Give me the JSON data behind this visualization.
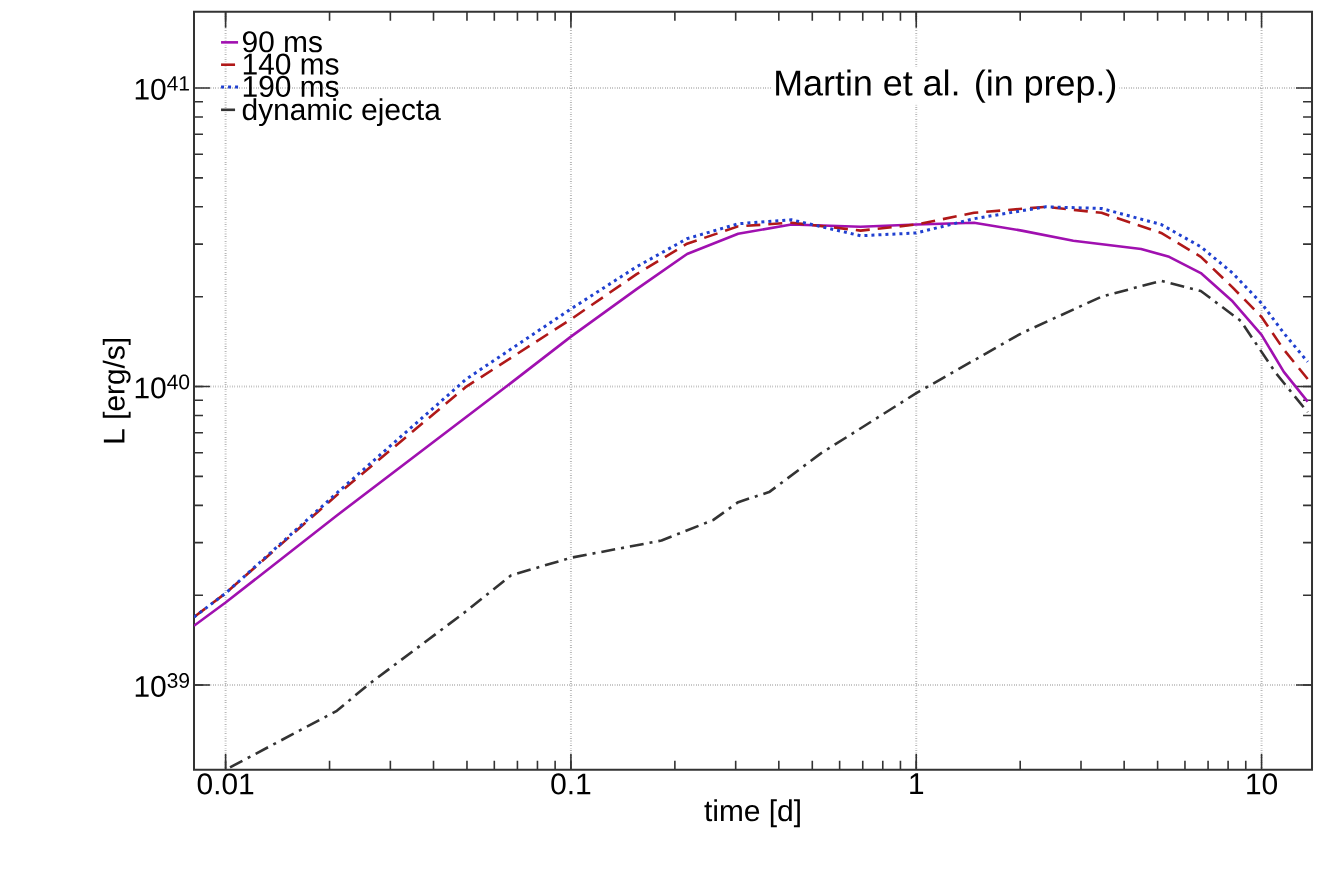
{
  "chart_data": {
    "type": "line",
    "xlabel": "time [d]",
    "ylabel": "L [erg/s]",
    "annotations": [
      "Martin et al. (in prep.)"
    ],
    "log": "xy",
    "grid": true,
    "legend": "top left",
    "marker": "none",
    "xlim": [
      0.0081,
      14
    ],
    "ylim": [
      5.2e+38,
      1.8e+41
    ],
    "xticks": [
      0.01,
      0.1,
      1,
      10
    ],
    "yticks": [
      {
        "value": 1e+39,
        "label": "10$^{39}$"
      },
      {
        "value": 1e+40,
        "label": "10$^{40}$"
      },
      {
        "value": 1e+41,
        "label": "10$^{41}$"
      }
    ],
    "series": [
      {
        "name": "90 ms",
        "color": "#a010b0",
        "line_style": "solid",
        "x": [
          0.0081,
          0.01,
          0.021,
          0.065,
          0.1,
          0.155,
          0.217,
          0.305,
          0.435,
          0.69,
          1,
          1.47,
          2.02,
          2.85,
          4.48,
          5.4,
          6.67,
          8.24,
          10,
          11.6,
          13.6
        ],
        "values": [
          1.58e+39,
          1.89e+39,
          3.7e+39,
          1e+40,
          1.47e+40,
          2.12e+40,
          2.78e+40,
          3.25e+40,
          3.49e+40,
          3.43e+40,
          3.49e+40,
          3.54e+40,
          3.33e+40,
          3.08e+40,
          2.89e+40,
          2.72e+40,
          2.4e+40,
          1.93e+40,
          1.49e+40,
          1.12e+40,
          8.9e+39
        ]
      },
      {
        "name": "140 ms",
        "color": "#b01818",
        "line_style": "dashed",
        "x": [
          0.0081,
          0.01,
          0.021,
          0.0498,
          0.1,
          0.155,
          0.217,
          0.305,
          0.435,
          0.69,
          1,
          1.47,
          2.37,
          3.44,
          5.12,
          6.67,
          8.24,
          10,
          11.6,
          13.6
        ],
        "values": [
          1.69e+39,
          2.03e+39,
          4.33e+39,
          1e+40,
          1.68e+40,
          2.38e+40,
          3.01e+40,
          3.44e+40,
          3.54e+40,
          3.33e+40,
          3.49e+40,
          3.82e+40,
          4e+40,
          3.82e+40,
          3.27e+40,
          2.72e+40,
          2.15e+40,
          1.71e+40,
          1.33e+40,
          1.06e+40
        ]
      },
      {
        "name": "190 ms",
        "color": "#2040d0",
        "line_style": "dotted",
        "x": [
          0.0081,
          0.01,
          0.021,
          0.0498,
          0.1,
          0.155,
          0.217,
          0.305,
          0.435,
          0.69,
          1,
          1.47,
          2.37,
          3.44,
          5.12,
          6.67,
          8.24,
          10,
          11.6,
          13.6
        ],
        "values": [
          1.69e+39,
          2.03e+39,
          4.4e+39,
          1.06e+40,
          1.82e+40,
          2.52e+40,
          3.13e+40,
          3.51e+40,
          3.62e+40,
          3.2e+40,
          3.27e+40,
          3.65e+40,
          4e+40,
          3.95e+40,
          3.49e+40,
          2.94e+40,
          2.4e+40,
          1.9e+40,
          1.51e+40,
          1.21e+40
        ]
      },
      {
        "name": "dynamic ejecta",
        "color": "#333333",
        "line_style": "dashdot",
        "x": [
          0.0103,
          0.021,
          0.0258,
          0.0498,
          0.067,
          0.1,
          0.183,
          0.258,
          0.305,
          0.375,
          0.527,
          1,
          2.02,
          3.44,
          5.12,
          6.67,
          8.7,
          11.0,
          13.6
        ],
        "values": [
          5.3e+38,
          8.2e+38,
          1e+39,
          1.77e+39,
          2.33e+39,
          2.67e+39,
          3.05e+39,
          3.57e+39,
          4.1e+39,
          4.43e+39,
          5.95e+39,
          9.5e+39,
          1.51e+40,
          2e+40,
          2.26e+40,
          2.09e+40,
          1.66e+40,
          1.11e+40,
          8.2e+39
        ]
      }
    ]
  }
}
